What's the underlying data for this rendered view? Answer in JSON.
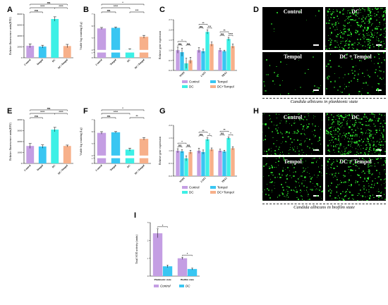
{
  "panels": {
    "A": "A",
    "B": "B",
    "C": "C",
    "D": "D",
    "E": "E",
    "F": "F",
    "G": "G",
    "H": "H",
    "I": "I"
  },
  "colors": {
    "control": "#c49ee3",
    "tempol": "#39c6f2",
    "dc": "#3df0e6",
    "dc_tempol": "#f7b08a",
    "i_control": "#c49ee3",
    "i_dc": "#39c6f2",
    "fluor_green": "#2ee62e"
  },
  "microscopy": {
    "labels": [
      "Control",
      "DC",
      "Tempol",
      "DC + Tempol"
    ],
    "caption_top": "Candida albicans in planktonic state",
    "caption_bottom": "Candida albicans in biofilm state",
    "density_top": [
      0.02,
      0.9,
      0.08,
      0.25
    ],
    "density_bottom": [
      0.4,
      0.95,
      0.45,
      0.6
    ]
  },
  "chart_data": [
    {
      "id": "A",
      "type": "bar",
      "title": "",
      "ylabel": "Relative fluorescence units(RFU)",
      "categories": [
        "Control",
        "Tempol",
        "DC",
        "DC+Tempol"
      ],
      "values": [
        2200,
        2050,
        7100,
        2150
      ],
      "errors": [
        350,
        250,
        400,
        300
      ],
      "ylim": [
        0,
        8000
      ],
      "yticks": [
        "0",
        "2000",
        "4000",
        "6000",
        "8000"
      ],
      "significance": [
        {
          "from": 0,
          "to": 1,
          "label": "ns",
          "level": 1
        },
        {
          "from": 0,
          "to": 2,
          "label": "****",
          "level": 2
        },
        {
          "from": 2,
          "to": 3,
          "label": "****",
          "level": 2
        },
        {
          "from": 0,
          "to": 3,
          "label": "ns",
          "level": 3
        }
      ]
    },
    {
      "id": "B",
      "type": "bar",
      "title": "",
      "ylabel": "Viable log counting (Lg)",
      "categories": [
        "Control",
        "Tempol",
        "DC",
        "DC+Tempol"
      ],
      "values": [
        5.8,
        5.85,
        4.0,
        5.1
      ],
      "errors": [
        0.08,
        0.07,
        0.1,
        0.12
      ],
      "ylim": [
        0,
        7
      ],
      "yticks": [
        "0",
        "1",
        "4",
        "5",
        "6",
        "7"
      ],
      "significance": [
        {
          "from": 0,
          "to": 1,
          "label": "ns",
          "level": 1
        },
        {
          "from": 2,
          "to": 3,
          "label": "***",
          "level": 1
        },
        {
          "from": 0,
          "to": 2,
          "label": "****",
          "level": 2
        },
        {
          "from": 0,
          "to": 3,
          "label": "*",
          "level": 3
        }
      ]
    },
    {
      "id": "C",
      "type": "bar",
      "title": "",
      "ylabel": "Relative gene expression",
      "categories": [
        "SOD2",
        "CAT1",
        "TRX1"
      ],
      "series": [
        {
          "name": "Control",
          "values": [
            1.0,
            1.0,
            1.0
          ],
          "errors": [
            0.15,
            0.12,
            0.08
          ]
        },
        {
          "name": "Tempol",
          "values": [
            0.9,
            0.95,
            0.95
          ],
          "errors": [
            0.2,
            0.1,
            0.05
          ]
        },
        {
          "name": "DC",
          "values": [
            0.35,
            1.9,
            1.55
          ],
          "errors": [
            0.25,
            0.1,
            0.08
          ]
        },
        {
          "name": "DC+Tempol",
          "values": [
            0.5,
            1.3,
            1.2
          ],
          "errors": [
            0.15,
            0.1,
            0.1
          ]
        }
      ],
      "ylim": [
        0,
        2.5
      ],
      "yticks": [
        "0.0",
        "0.5",
        "1.0",
        "1.5",
        "2.0",
        "2.5"
      ],
      "significance": [
        {
          "group": 0,
          "from": 0,
          "to": 1,
          "label": "ns",
          "level": 1
        },
        {
          "group": 0,
          "from": 0,
          "to": 2,
          "label": "*",
          "level": 2
        },
        {
          "group": 0,
          "from": 2,
          "to": 3,
          "label": "ns",
          "level": 1
        },
        {
          "group": 1,
          "from": 0,
          "to": 1,
          "label": "ns",
          "level": 1
        },
        {
          "group": 1,
          "from": 0,
          "to": 2,
          "label": "**",
          "level": 2
        },
        {
          "group": 1,
          "from": 2,
          "to": 3,
          "label": "***",
          "level": 1
        },
        {
          "group": 2,
          "from": 0,
          "to": 1,
          "label": "ns",
          "level": 1
        },
        {
          "group": 2,
          "from": 0,
          "to": 2,
          "label": "**",
          "level": 2
        },
        {
          "group": 2,
          "from": 2,
          "to": 3,
          "label": "****",
          "level": 1
        }
      ],
      "legend": [
        "Control",
        "Tempol",
        "DC",
        "DC+Tempol"
      ],
      "legend_position": "bottom-left"
    },
    {
      "id": "E",
      "type": "bar",
      "title": "",
      "ylabel": "Relative fluorescence units(RFU)",
      "categories": [
        "Control",
        "Tempol",
        "DC",
        "DC+Tempol"
      ],
      "values": [
        1600,
        1550,
        3100,
        1600
      ],
      "errors": [
        220,
        150,
        200,
        80
      ],
      "ylim": [
        0,
        4000
      ],
      "yticks": [
        "0",
        "1000",
        "2000",
        "3000",
        "4000"
      ],
      "significance": [
        {
          "from": 0,
          "to": 1,
          "label": "ns",
          "level": 1
        },
        {
          "from": 0,
          "to": 2,
          "label": "****",
          "level": 2
        },
        {
          "from": 2,
          "to": 3,
          "label": "****",
          "level": 2
        },
        {
          "from": 0,
          "to": 3,
          "label": "ns",
          "level": 3
        }
      ]
    },
    {
      "id": "F",
      "type": "bar",
      "title": "",
      "ylabel": "Viable log counting (Lg)",
      "categories": [
        "Control",
        "Tempol",
        "DC",
        "DC+Tempol"
      ],
      "values": [
        5.9,
        5.95,
        4.5,
        5.4
      ],
      "errors": [
        0.1,
        0.06,
        0.12,
        0.1
      ],
      "ylim": [
        0,
        7
      ],
      "yticks": [
        "0",
        "1",
        "4",
        "5",
        "6",
        "7"
      ],
      "significance": [
        {
          "from": 0,
          "to": 1,
          "label": "ns",
          "level": 1
        },
        {
          "from": 2,
          "to": 3,
          "label": "**",
          "level": 1
        },
        {
          "from": 0,
          "to": 2,
          "label": "****",
          "level": 2
        },
        {
          "from": 0,
          "to": 3,
          "label": "*",
          "level": 3
        }
      ]
    },
    {
      "id": "G",
      "type": "bar",
      "title": "",
      "ylabel": "Relative gene expression",
      "categories": [
        "SOD2",
        "CAT1",
        "TRX1"
      ],
      "series": [
        {
          "name": "Control",
          "values": [
            1.0,
            1.0,
            1.0
          ],
          "errors": [
            0.08,
            0.1,
            0.06
          ]
        },
        {
          "name": "Tempol",
          "values": [
            0.98,
            0.95,
            0.97
          ],
          "errors": [
            0.06,
            0.08,
            0.05
          ]
        },
        {
          "name": "DC",
          "values": [
            0.7,
            1.45,
            1.5
          ],
          "errors": [
            0.1,
            0.06,
            0.05
          ]
        },
        {
          "name": "DC+Tempol",
          "values": [
            0.95,
            1.05,
            1.1
          ],
          "errors": [
            0.07,
            0.06,
            0.06
          ]
        }
      ],
      "ylim": [
        0,
        2.0
      ],
      "yticks": [
        "0.0",
        "0.5",
        "1.0",
        "1.5",
        "2.0"
      ],
      "significance": [
        {
          "group": 0,
          "from": 0,
          "to": 1,
          "label": "ns",
          "level": 1
        },
        {
          "group": 0,
          "from": 0,
          "to": 2,
          "label": "*",
          "level": 2
        },
        {
          "group": 0,
          "from": 2,
          "to": 3,
          "label": "ns",
          "level": 1
        },
        {
          "group": 1,
          "from": 0,
          "to": 1,
          "label": "ns",
          "level": 1
        },
        {
          "group": 1,
          "from": 0,
          "to": 2,
          "label": "**",
          "level": 2
        },
        {
          "group": 1,
          "from": 2,
          "to": 3,
          "label": "*",
          "level": 1
        },
        {
          "group": 2,
          "from": 0,
          "to": 1,
          "label": "ns",
          "level": 1
        },
        {
          "group": 2,
          "from": 0,
          "to": 2,
          "label": "**",
          "level": 2
        },
        {
          "group": 2,
          "from": 2,
          "to": 3,
          "label": "*",
          "level": 1
        }
      ],
      "legend": [
        "Control",
        "Tempol",
        "DC",
        "DC+Tempol"
      ],
      "legend_position": "bottom-left"
    },
    {
      "id": "I",
      "type": "bar",
      "title": "",
      "ylabel": "Total SOD activity (units)",
      "categories": [
        "Planktonic state",
        "Biofilm state"
      ],
      "series": [
        {
          "name": "Control",
          "values": [
            2.4,
            1.0
          ],
          "errors": [
            0.25,
            0.06
          ]
        },
        {
          "name": "DC",
          "values": [
            0.55,
            0.4
          ],
          "errors": [
            0.07,
            0.05
          ]
        }
      ],
      "ylim": [
        0,
        3
      ],
      "yticks": [
        "0",
        "1",
        "2",
        "3"
      ],
      "significance": [
        {
          "group": 0,
          "from": 0,
          "to": 1,
          "label": "*",
          "level": 1
        },
        {
          "group": 1,
          "from": 0,
          "to": 1,
          "label": "*",
          "level": 1
        }
      ],
      "legend": [
        "Control",
        "DC"
      ],
      "legend_position": "bottom"
    }
  ]
}
